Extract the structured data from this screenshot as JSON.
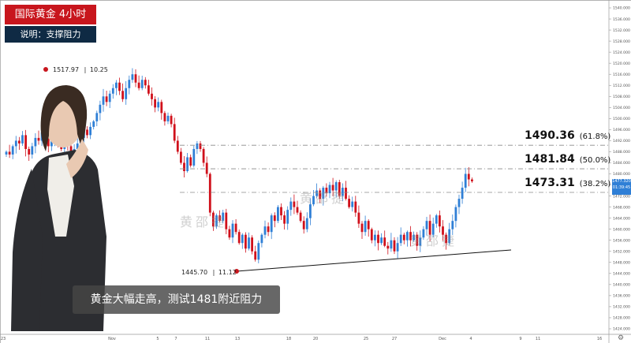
{
  "header": {
    "title": "国际黄金  4小时",
    "subtitle": "说明：支撑阻力"
  },
  "caption": {
    "text": "黄金大幅走高，测试1481附近阻力"
  },
  "watermark": {
    "text": "黄邵捷"
  },
  "annotations": {
    "high": {
      "price": "1517.97",
      "change": "10.25"
    },
    "low": {
      "price": "1445.70",
      "change": "11.12"
    }
  },
  "fib_levels": [
    {
      "price": "1490.36",
      "pct": "(61.8%)"
    },
    {
      "price": "1481.84",
      "pct": "(50.0%)"
    },
    {
      "price": "1473.31",
      "pct": "(38.2%)"
    }
  ],
  "price_axis": {
    "last_price": "1477.320",
    "countdown": "01:39:45"
  },
  "colors": {
    "up": "#2f7fd6",
    "down": "#d0101b",
    "title_bg": "#c8161d",
    "subtitle_bg": "#0f2a44"
  },
  "chart_data": {
    "type": "candlestick",
    "title": "国际黄金  4小时",
    "y_ticks": [
      "1540.000",
      "1536.000",
      "1532.000",
      "1528.000",
      "1524.000",
      "1520.000",
      "1516.000",
      "1512.000",
      "1508.000",
      "1504.000",
      "1500.000",
      "1496.000",
      "1492.000",
      "1488.000",
      "1484.000",
      "1480.000",
      "1476.000",
      "1472.000",
      "1468.000",
      "1464.000",
      "1460.000",
      "1456.000",
      "1452.000",
      "1448.000",
      "1444.000",
      "1440.000",
      "1436.000",
      "1432.000",
      "1428.000",
      "1424.000"
    ],
    "ylim": [
      1422,
      1542
    ],
    "x_ticks": [
      "23",
      "Nov",
      "5",
      "7",
      "11",
      "13",
      "18",
      "20",
      "25",
      "27",
      "Dec",
      "4",
      "9",
      "11",
      "16"
    ],
    "close": [
      1488,
      1487,
      1490,
      1492,
      1491,
      1494,
      1489,
      1487,
      1490,
      1493,
      1492,
      1495,
      1493,
      1490,
      1492,
      1494,
      1491,
      1489,
      1492,
      1490,
      1487,
      1489,
      1491,
      1493,
      1496,
      1494,
      1497,
      1499,
      1502,
      1505,
      1508,
      1506,
      1509,
      1511,
      1513,
      1510,
      1507,
      1511,
      1514,
      1516,
      1513,
      1511,
      1514,
      1512,
      1509,
      1507,
      1504,
      1506,
      1502,
      1499,
      1501,
      1498,
      1492,
      1488,
      1484,
      1481,
      1486,
      1483,
      1489,
      1491,
      1489,
      1484,
      1480,
      1466,
      1461,
      1465,
      1463,
      1466,
      1460,
      1457,
      1462,
      1459,
      1455,
      1458,
      1453,
      1457,
      1452,
      1449,
      1455,
      1458,
      1461,
      1459,
      1465,
      1463,
      1468,
      1465,
      1462,
      1467,
      1470,
      1468,
      1466,
      1463,
      1460,
      1464,
      1469,
      1472,
      1474,
      1471,
      1475,
      1473,
      1476,
      1474,
      1477,
      1472,
      1475,
      1471,
      1468,
      1470,
      1466,
      1462,
      1459,
      1463,
      1460,
      1456,
      1458,
      1455,
      1457,
      1454,
      1453,
      1456,
      1452,
      1455,
      1458,
      1456,
      1459,
      1456,
      1458,
      1454,
      1457,
      1460,
      1463,
      1458,
      1462,
      1465,
      1461,
      1458,
      1455,
      1460,
      1463,
      1468,
      1471,
      1475,
      1480,
      1478,
      1477.3
    ],
    "support_line": {
      "from": [
        "13",
        1447
      ],
      "to": [
        "Dec",
        1454
      ]
    },
    "levels": [
      1490.36,
      1481.84,
      1473.31
    ],
    "grid": true
  }
}
